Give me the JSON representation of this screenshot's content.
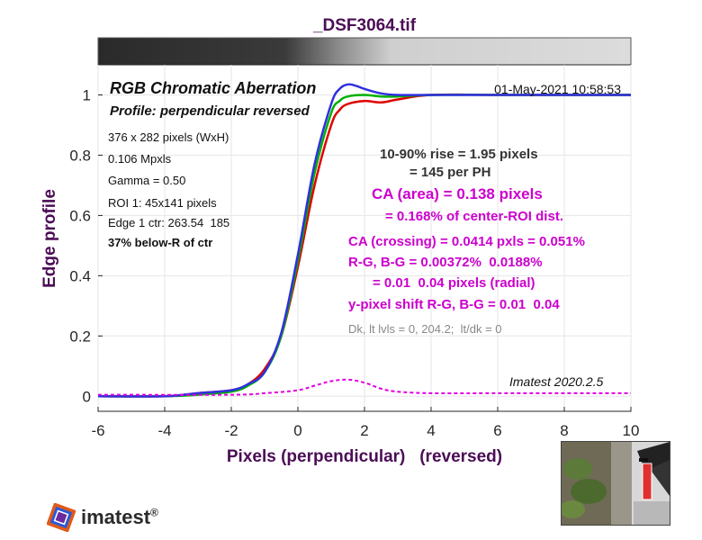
{
  "figure": {
    "filename": "_DSF3064.tif",
    "colors": {
      "red": "#e00000",
      "green": "#00b000",
      "blue": "#3030e0",
      "ca": "#e000e0",
      "title": "#4b0d55"
    }
  },
  "chart_data": {
    "type": "line",
    "title": "_DSF3064.tif",
    "xlabel": "Pixels (perpendicular)   (reversed)",
    "ylabel": "Edge profile",
    "xlim": [
      -6,
      10
    ],
    "ylim": [
      -0.05,
      1.1
    ],
    "xticks": [
      "-6",
      "-4",
      "-2",
      "0",
      "2",
      "4",
      "6",
      "8",
      "10"
    ],
    "yticks": [
      "0",
      "0.2",
      "0.4",
      "0.6",
      "0.8",
      "1"
    ],
    "grid": true,
    "series": [
      {
        "color": "red",
        "style": "solid",
        "x": [
          -6,
          -4,
          -3,
          -2,
          -1.5,
          -1,
          -0.5,
          0,
          0.5,
          1,
          1.25,
          1.5,
          2,
          2.5,
          3,
          4,
          6,
          8,
          10
        ],
        "y": [
          0.0,
          0.0,
          0.01,
          0.02,
          0.04,
          0.09,
          0.2,
          0.43,
          0.7,
          0.9,
          0.95,
          0.97,
          0.98,
          0.975,
          0.985,
          1.0,
          1.0,
          1.0,
          1.0
        ]
      },
      {
        "color": "green",
        "style": "solid",
        "x": [
          -6,
          -4,
          -3,
          -2,
          -1.5,
          -1,
          -0.5,
          0,
          0.5,
          1,
          1.25,
          1.5,
          2,
          2.5,
          3,
          4,
          6,
          8,
          10
        ],
        "y": [
          0.0,
          0.0,
          0.005,
          0.015,
          0.035,
          0.08,
          0.2,
          0.45,
          0.74,
          0.94,
          0.98,
          0.995,
          1.0,
          0.995,
          0.995,
          1.0,
          1.0,
          1.0,
          1.0
        ]
      },
      {
        "color": "blue",
        "style": "solid",
        "x": [
          -6,
          -4,
          -3,
          -2,
          -1.5,
          -1,
          -0.5,
          0,
          0.5,
          1,
          1.25,
          1.5,
          1.75,
          2,
          2.5,
          3,
          4,
          6,
          8,
          10
        ],
        "y": [
          0.0,
          0.0,
          0.01,
          0.02,
          0.04,
          0.08,
          0.21,
          0.47,
          0.77,
          0.97,
          1.02,
          1.035,
          1.03,
          1.02,
          1.005,
          1.0,
          1.0,
          1.0,
          1.0,
          1.0
        ]
      },
      {
        "color": "ca",
        "style": "dashed",
        "x": [
          -6,
          -2,
          -1,
          0,
          0.5,
          1,
          1.5,
          2,
          2.5,
          3,
          4,
          6,
          10
        ],
        "y": [
          0.005,
          0.005,
          0.01,
          0.02,
          0.035,
          0.05,
          0.055,
          0.045,
          0.025,
          0.015,
          0.01,
          0.01,
          0.01
        ]
      }
    ]
  },
  "annotations": {
    "heading": "RGB Chromatic Aberration",
    "date": "01-May-2021 10:58:53",
    "profile": "Profile: perpendicular reversed",
    "size": "376 x 282 pixels (WxH)",
    "mpxls": "0.106 Mpxls",
    "gamma": "Gamma = 0.50",
    "roi": "ROI 1: 45x141 pixels",
    "edge": "Edge 1 ctr: 263.54  185",
    "below": "37% below-R of ctr",
    "rise1": "10-90% rise = 1.95 pixels",
    "rise2": "= 145 per PH",
    "ca_area1": "CA (area) = 0.138 pixels",
    "ca_area2": "= 0.168% of center-ROI dist.",
    "ca_cross": "CA (crossing) = 0.0414 pxls = 0.051%",
    "rg_bg": "R-G, B-G = 0.00372%  0.0188%",
    "radial": "= 0.01  0.04 pixels (radial)",
    "yshift": "y-pixel shift R-G, B-G = 0.01  0.04",
    "dk": "Dk, lt lvls = 0, 204.2;  lt/dk = 0",
    "version": "Imatest 2020.2.5"
  },
  "logo": {
    "name": "imatest",
    "reg": "®"
  }
}
